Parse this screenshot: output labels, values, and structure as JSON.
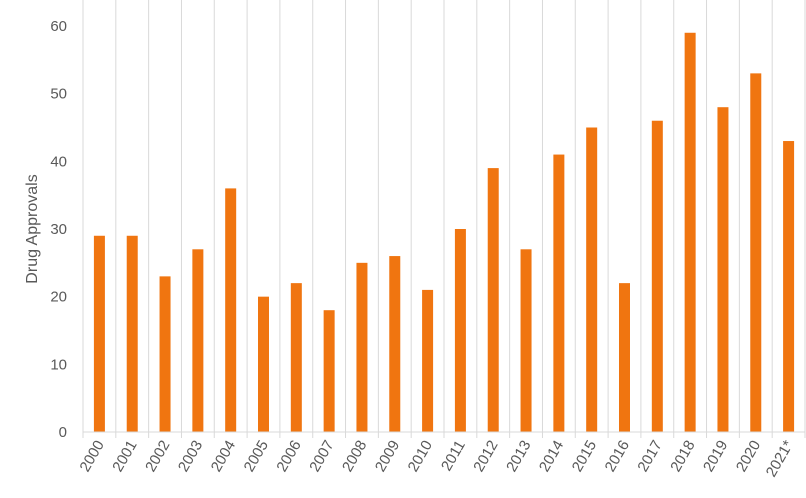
{
  "chart_data": {
    "type": "bar",
    "title": "",
    "xlabel": "",
    "ylabel": "Drug Approvals",
    "ylim": [
      0,
      60
    ],
    "yticks": [
      0,
      10,
      20,
      30,
      40,
      50,
      60
    ],
    "grid": "vertical separators between categories",
    "legend": "none",
    "colors": {
      "bar": "#F07510",
      "tick_text": "#595959",
      "grid": "#D9D9D9"
    },
    "categories": [
      "2000",
      "2001",
      "2002",
      "2003",
      "2004",
      "2005",
      "2006",
      "2007",
      "2008",
      "2009",
      "2010",
      "2011",
      "2012",
      "2013",
      "2014",
      "2015",
      "2016",
      "2017",
      "2018",
      "2019",
      "2020",
      "2021*"
    ],
    "values": [
      29,
      29,
      23,
      27,
      36,
      20,
      22,
      18,
      25,
      26,
      21,
      30,
      39,
      27,
      41,
      45,
      22,
      46,
      59,
      48,
      53,
      43
    ]
  }
}
